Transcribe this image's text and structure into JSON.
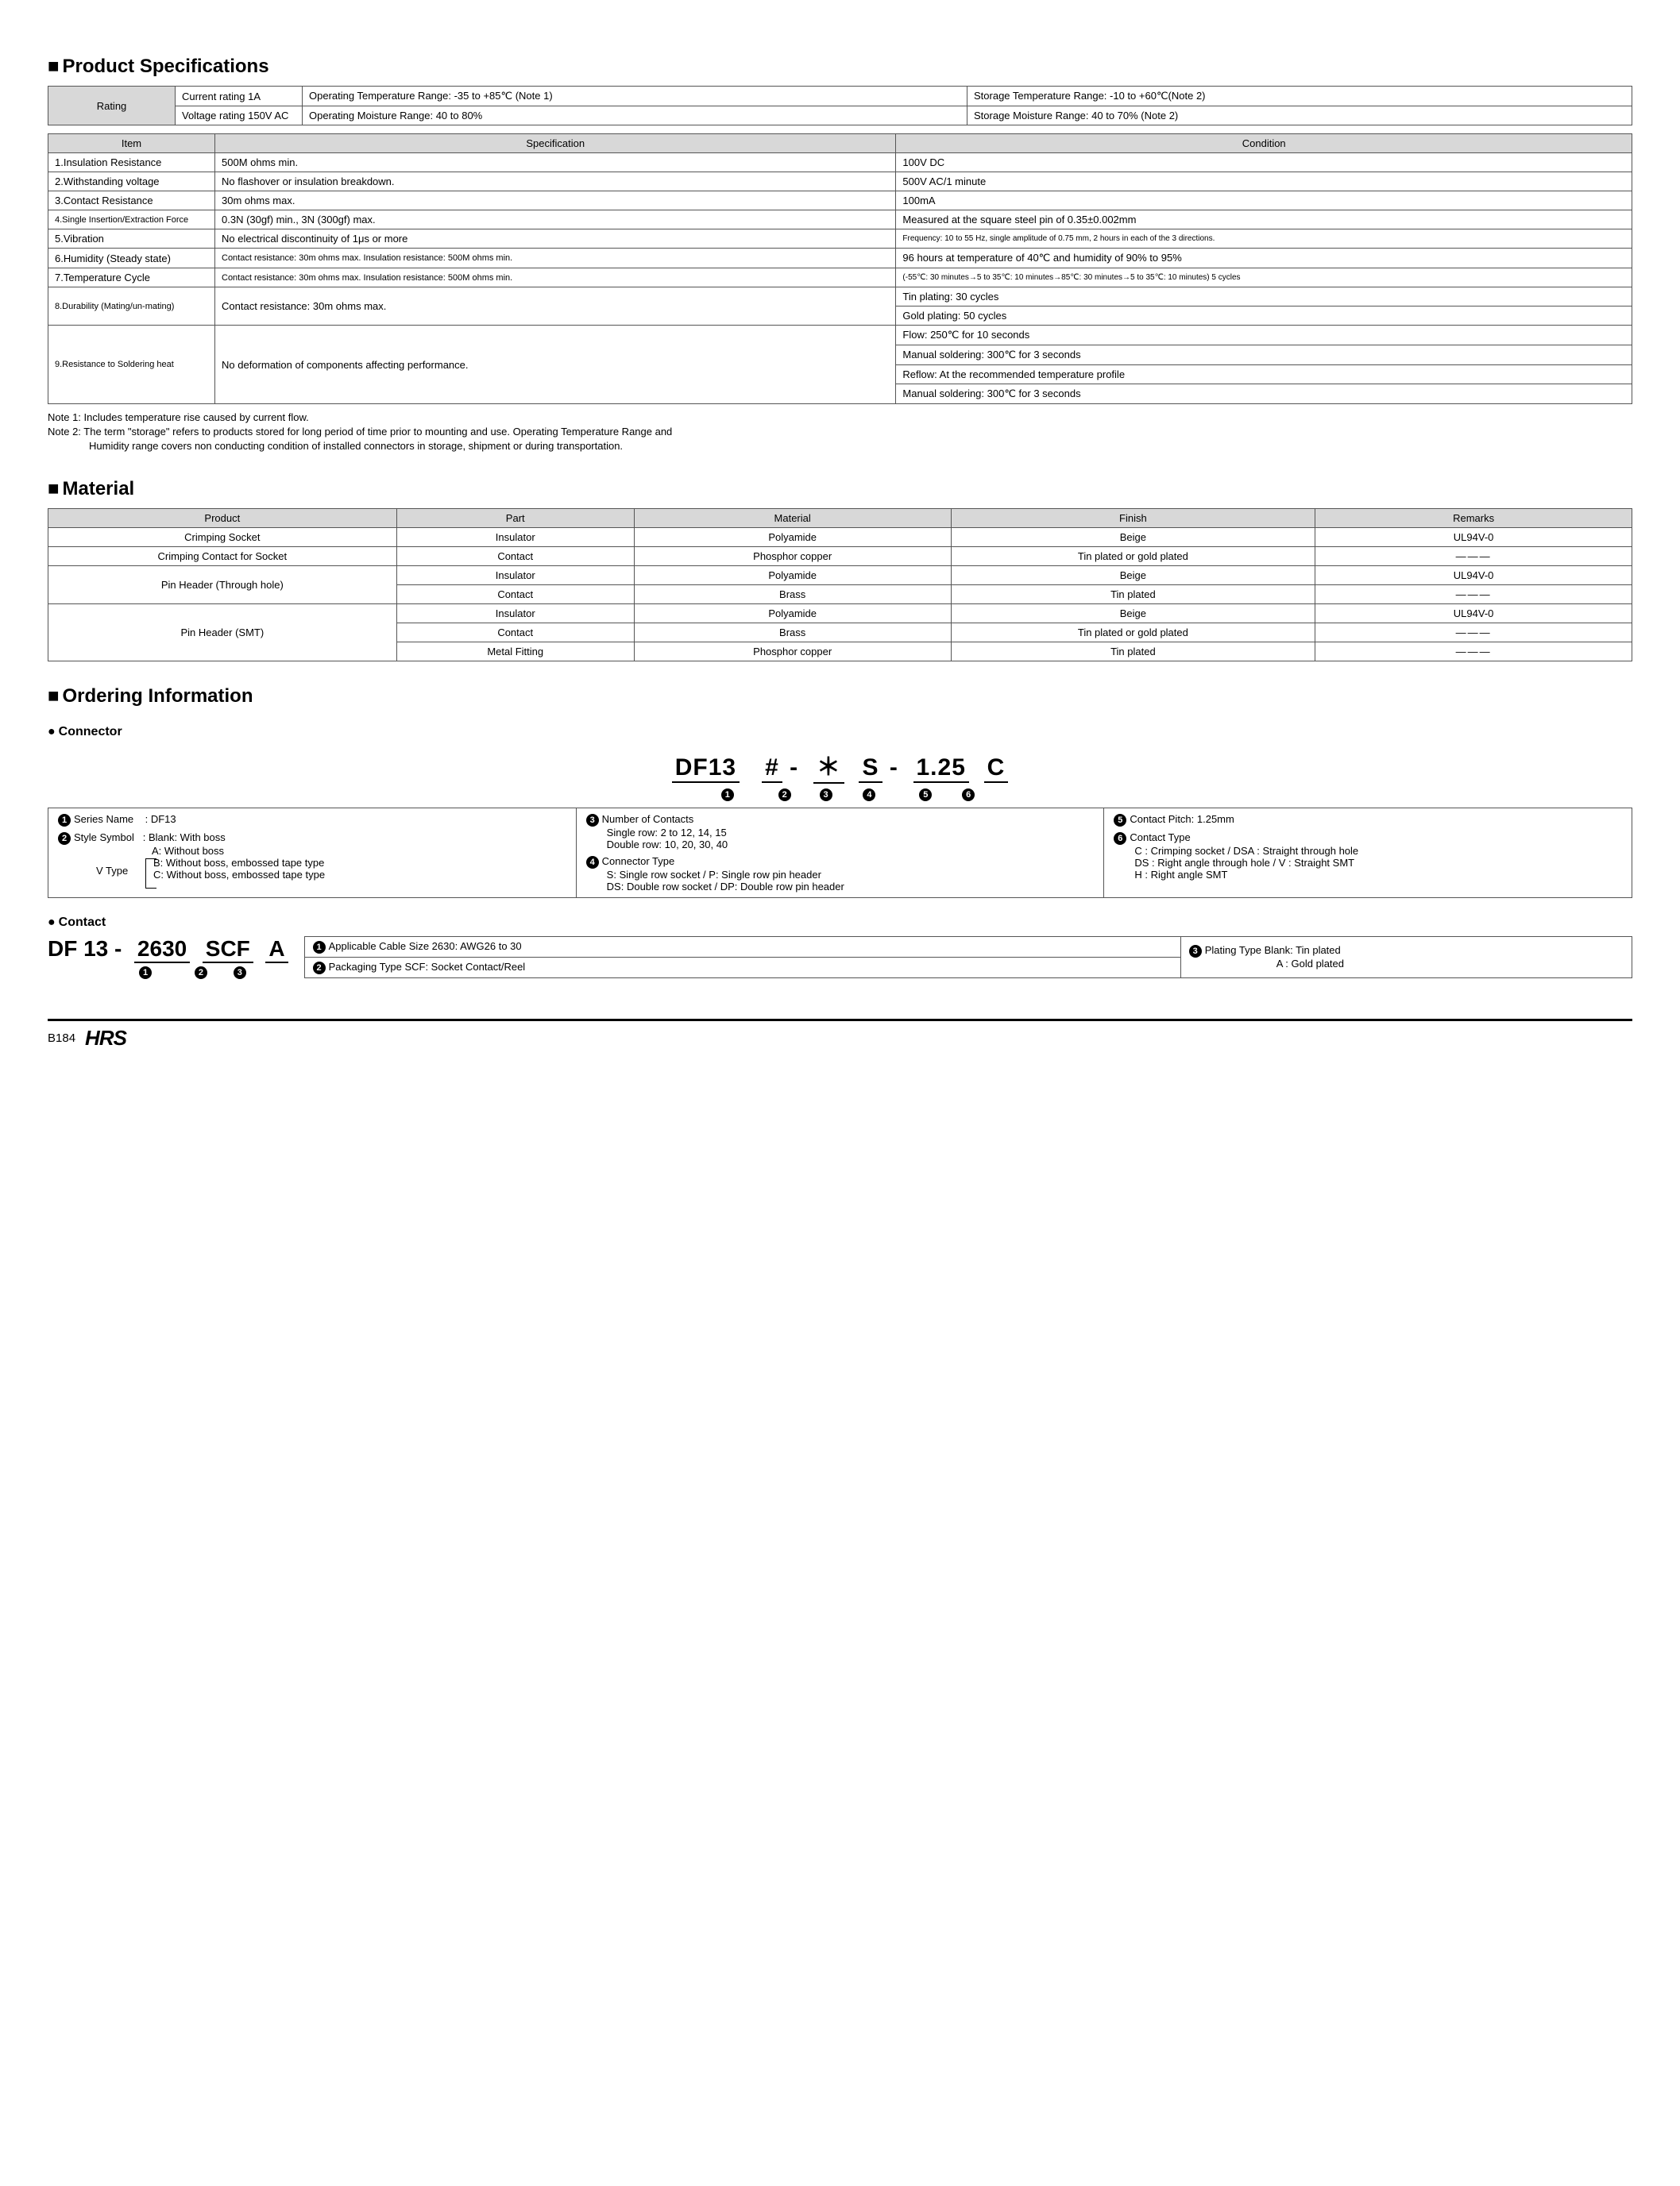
{
  "section_spec_title": "Product Specifications",
  "rating": {
    "label": "Rating",
    "current": "Current rating  1A",
    "voltage": "Voltage rating  150V AC",
    "op_temp": "Operating Temperature Range: -35 to +85℃ (Note 1)",
    "op_moist": "Operating Moisture Range: 40 to 80%",
    "stor_temp": "Storage Temperature Range: -10 to +60℃(Note 2)",
    "stor_moist": "Storage Moisture Range: 40 to 70%          (Note 2)"
  },
  "spec_headers": {
    "item": "Item",
    "spec": "Specification",
    "cond": "Condition"
  },
  "spec_rows": [
    {
      "item": "1.Insulation Resistance",
      "spec": "500M ohms min.",
      "cond": "100V DC"
    },
    {
      "item": "2.Withstanding voltage",
      "spec": "No flashover or insulation breakdown.",
      "cond": "500V AC/1 minute"
    },
    {
      "item": "3.Contact Resistance",
      "spec": "30m ohms max.",
      "cond": "100mA"
    },
    {
      "item": "4.Single Insertion/Extraction Force",
      "spec": "0.3N (30gf) min., 3N (300gf) max.",
      "cond": "Measured at the square steel pin of 0.35±0.002mm",
      "item_small": true
    },
    {
      "item": "5.Vibration",
      "spec": "No electrical discontinuity of 1μs or more",
      "cond": "Frequency: 10 to 55 Hz, single amplitude of 0.75 mm, 2 hours in each of the 3 directions.",
      "cond_small": true
    },
    {
      "item": "6.Humidity (Steady state)",
      "spec": "Contact resistance: 30m ohms max. Insulation resistance: 500M ohms min.",
      "cond": "96 hours at temperature of 40℃ and humidity of 90% to 95%",
      "spec_small": true
    },
    {
      "item": "7.Temperature Cycle",
      "spec": "Contact resistance: 30m ohms max. Insulation resistance: 500M ohms min.",
      "cond": "(-55℃: 30 minutes→5 to 35℃: 10 minutes→85℃: 30 minutes→5 to 35℃: 10 minutes) 5 cycles",
      "spec_small": true,
      "cond_small": true
    }
  ],
  "spec_durability": {
    "item": "8.Durability (Mating/un-mating)",
    "spec": "Contact resistance: 30m ohms max.",
    "cond1": "Tin plating: 30 cycles",
    "cond2": "Gold plating: 50 cycles"
  },
  "spec_solder": {
    "item": "9.Resistance to Soldering heat",
    "spec": "No deformation of components affecting performance.",
    "cond1": "Flow: 250℃ for 10 seconds",
    "cond2": "Manual soldering: 300℃ for 3 seconds",
    "cond3": "Reflow: At the recommended temperature profile",
    "cond4": "Manual soldering: 300℃ for 3 seconds"
  },
  "notes": {
    "n1": "Note 1: Includes temperature rise caused by current flow.",
    "n2a": "Note 2: The term \"storage\" refers to products stored for long period of time prior to mounting and use. Operating Temperature Range and",
    "n2b": "Humidity range covers non conducting condition of installed connectors in storage, shipment or during transportation."
  },
  "section_mat_title": "Material",
  "mat_headers": {
    "product": "Product",
    "part": "Part",
    "material": "Material",
    "finish": "Finish",
    "remarks": "Remarks"
  },
  "mat": {
    "r1": {
      "product": "Crimping Socket",
      "part": "Insulator",
      "material": "Polyamide",
      "finish": "Beige",
      "remarks": "UL94V-0"
    },
    "r2": {
      "product": "Crimping Contact for Socket",
      "part": "Contact",
      "material": "Phosphor copper",
      "finish": "Tin plated or gold plated",
      "remarks": "―――"
    },
    "r3": {
      "product": "Pin Header (Through hole)",
      "part": "Insulator",
      "material": "Polyamide",
      "finish": "Beige",
      "remarks": "UL94V-0"
    },
    "r4": {
      "part": "Contact",
      "material": "Brass",
      "finish": "Tin plated",
      "remarks": "―――"
    },
    "r5": {
      "product": "Pin Header (SMT)",
      "part": "Insulator",
      "material": "Polyamide",
      "finish": "Beige",
      "remarks": "UL94V-0"
    },
    "r6": {
      "part": "Contact",
      "material": "Brass",
      "finish": "Tin plated or gold plated",
      "remarks": "―――"
    },
    "r7": {
      "part": "Metal Fitting",
      "material": "Phosphor copper",
      "finish": "Tin plated",
      "remarks": "―――"
    }
  },
  "section_order_title": "Ordering Information",
  "connector_sub": "Connector",
  "order": {
    "s1": "DF13",
    "s2": "#",
    "s3": "＊",
    "s4": "S",
    "s5": "1.25",
    "s6": "C"
  },
  "conn_legend": {
    "l1_title": "Series Name",
    "l1_val": ": DF13",
    "l2_title": "Style Symbol",
    "l2_val": ": Blank: With boss",
    "l2a": "A: Without boss",
    "l2b": "B: Without boss, embossed tape type",
    "l2c": "C: Without boss, embossed tape type",
    "vtype": "V Type",
    "l3_title": "Number of Contacts",
    "l3a": "Single row: 2 to 12, 14, 15",
    "l3b": "Double row: 10, 20, 30, 40",
    "l4_title": "Connector Type",
    "l4a": "S: Single row socket / P: Single row pin header",
    "l4b": "DS: Double row socket / DP: Double row pin header",
    "l5_title": "Contact Pitch: 1.25mm",
    "l6_title": "Contact Type",
    "l6a": "C : Crimping socket / DSA : Straight through hole",
    "l6b": "DS : Right angle through hole / V : Straight SMT",
    "l6c": "H : Right angle SMT"
  },
  "contact_sub": "Contact",
  "contact": {
    "s0": "DF 13",
    "s1": "2630",
    "s2": "SCF",
    "s3": "A"
  },
  "contact_legend": {
    "c1": "Applicable Cable Size  2630: AWG26 to 30",
    "c2": "Packaging Type  SCF: Socket Contact/Reel",
    "c3a": "Plating Type    Blank: Tin plated",
    "c3b": "A   : Gold plated"
  },
  "footer": {
    "page": "B184",
    "logo": "HRS"
  },
  "circled": {
    "1": "1",
    "2": "2",
    "3": "3",
    "4": "4",
    "5": "5",
    "6": "6"
  }
}
